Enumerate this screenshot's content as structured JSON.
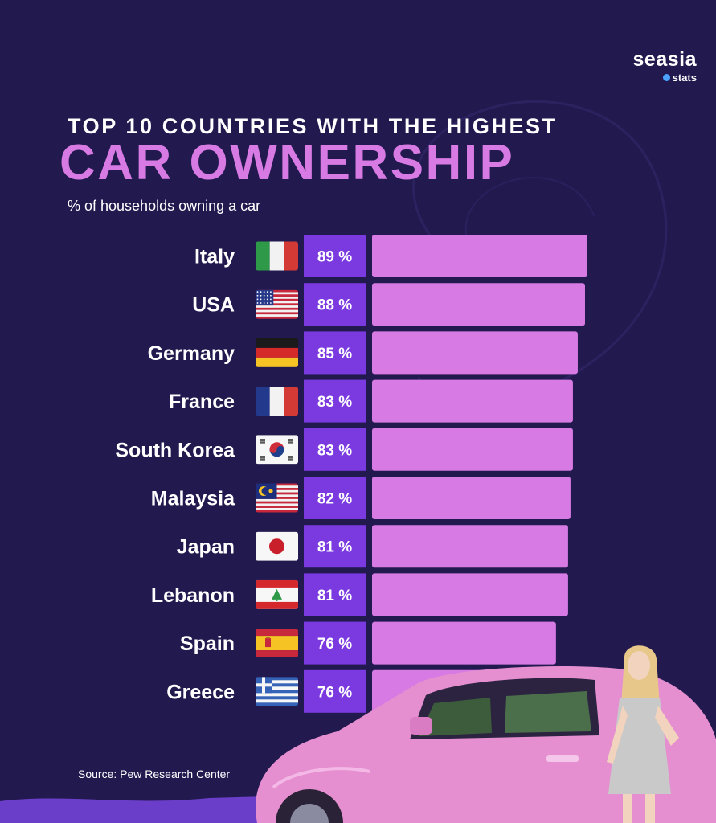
{
  "brand": {
    "name": "seasia",
    "sub": "stats"
  },
  "header": {
    "title_top": "TOP 10 COUNTRIES WITH THE HIGHEST",
    "title_main": "CAR OWNERSHIP",
    "subtitle": "% of households owning a car"
  },
  "source": "Source: Pew Research Center",
  "colors": {
    "background": "#22194f",
    "bar": "#d87ae3",
    "value_box": "#7a3ae0",
    "title_accent": "#d87ae3"
  },
  "chart_data": {
    "type": "bar",
    "orientation": "horizontal",
    "title": "TOP 10 COUNTRIES WITH THE HIGHEST CAR OWNERSHIP",
    "subtitle": "% of households owning a car",
    "categories": [
      "Italy",
      "USA",
      "Germany",
      "France",
      "South Korea",
      "Malaysia",
      "Japan",
      "Lebanon",
      "Spain",
      "Greece"
    ],
    "values": [
      89,
      88,
      85,
      83,
      83,
      82,
      81,
      81,
      76,
      76
    ],
    "value_labels": [
      "89 %",
      "88 %",
      "85 %",
      "83 %",
      "83 %",
      "82 %",
      "81 %",
      "81 %",
      "76 %",
      "76 %"
    ],
    "flag_icons": [
      "italy-flag-icon",
      "usa-flag-icon",
      "germany-flag-icon",
      "france-flag-icon",
      "south-korea-flag-icon",
      "malaysia-flag-icon",
      "japan-flag-icon",
      "lebanon-flag-icon",
      "spain-flag-icon",
      "greece-flag-icon"
    ],
    "unit": "%",
    "grid": false,
    "legend": "none"
  }
}
